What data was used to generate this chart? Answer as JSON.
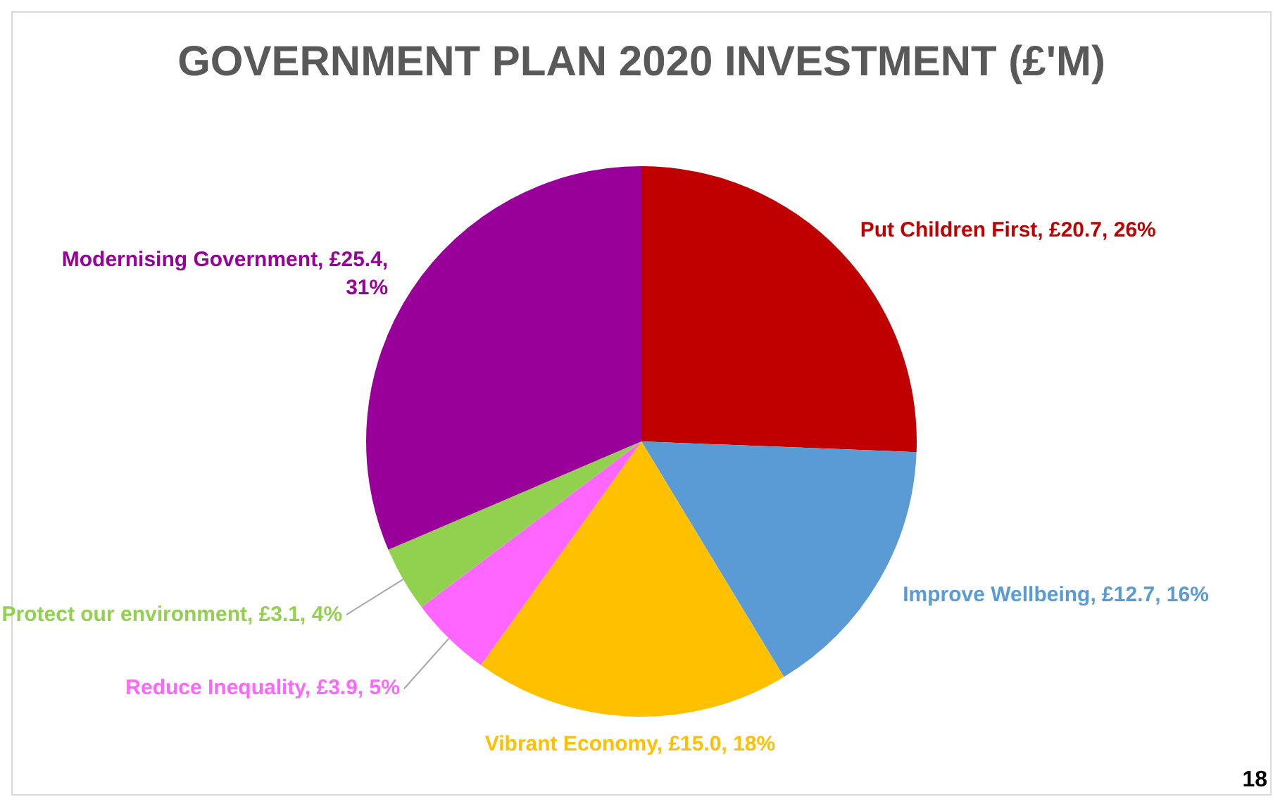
{
  "chart_data": {
    "type": "pie",
    "title": "GOVERNMENT PLAN 2020 INVESTMENT (£'M)",
    "categories": [
      "Put Children First",
      "Improve Wellbeing",
      "Vibrant Economy",
      "Reduce Inequality",
      "Protect our environment",
      "Modernising Government"
    ],
    "values": [
      20.7,
      12.7,
      15.0,
      3.9,
      3.1,
      25.4
    ],
    "colors": [
      "#c00000",
      "#5b9bd5",
      "#ffc000",
      "#ff66ff",
      "#92d050",
      "#990099"
    ],
    "value_labels": [
      "£20.7, 26%",
      "£12.7, 16%",
      "£15.0, 18%",
      "£3.9, 5%",
      "£3.1, 4%",
      "£25.4, 31%"
    ],
    "legend": false,
    "annotations": [
      "18"
    ]
  }
}
